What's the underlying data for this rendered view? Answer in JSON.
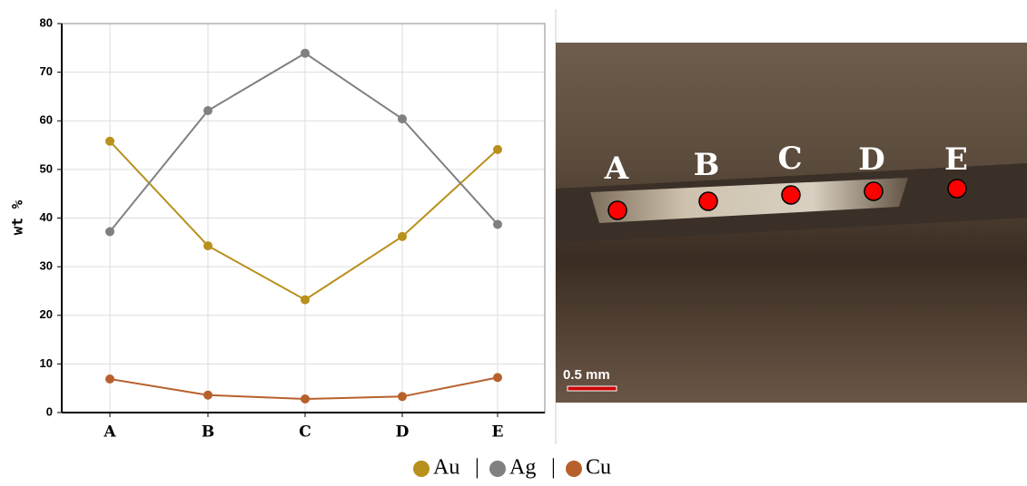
{
  "chart_data": {
    "type": "line",
    "y_label": "wt %",
    "categories": [
      "A",
      "B",
      "C",
      "D",
      "E"
    ],
    "series": [
      {
        "name": "Au",
        "color": "#b8901c",
        "values": [
          55.8,
          34.3,
          23.2,
          36.2,
          54.1
        ]
      },
      {
        "name": "Ag",
        "color": "#808080",
        "values": [
          37.2,
          62.1,
          73.9,
          60.4,
          38.7
        ]
      },
      {
        "name": "Cu",
        "color": "#b8602c",
        "values": [
          6.9,
          3.6,
          2.8,
          3.3,
          7.2
        ]
      }
    ],
    "ylim": [
      0,
      80
    ],
    "yticks": [
      0,
      10,
      20,
      30,
      40,
      50,
      60,
      70,
      80
    ],
    "grid": true,
    "legend_separator": "|"
  },
  "image": {
    "labels": [
      "A",
      "B",
      "C",
      "D",
      "E"
    ],
    "scale_bar": "0.5 mm"
  }
}
